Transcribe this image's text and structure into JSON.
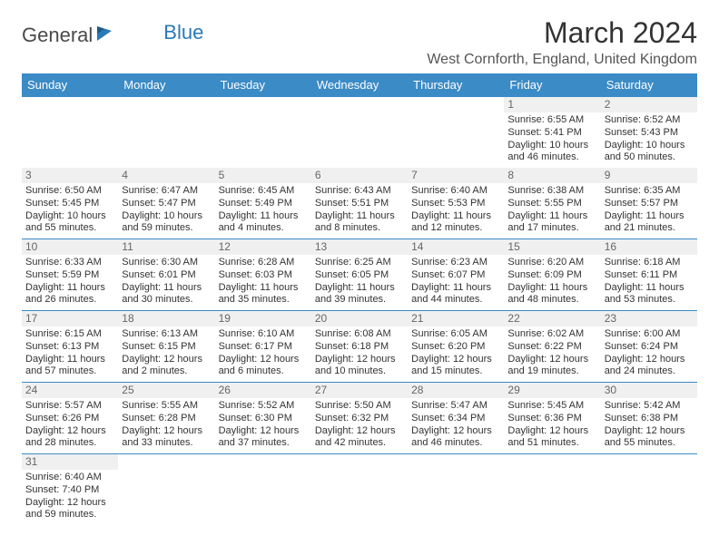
{
  "logo": {
    "part1": "General",
    "part2": "Blue"
  },
  "title": "March 2024",
  "location": "West Cornforth, England, United Kingdom",
  "colors": {
    "header_bg": "#3b8bc6",
    "header_text": "#ffffff",
    "border": "#3b8bc6",
    "daynum_bg": "#f0f0f0",
    "logo_blue": "#2a7ab8"
  },
  "day_headers": [
    "Sunday",
    "Monday",
    "Tuesday",
    "Wednesday",
    "Thursday",
    "Friday",
    "Saturday"
  ],
  "first_weekday_index": 5,
  "days": [
    {
      "n": 1,
      "sunrise": "6:55 AM",
      "sunset": "5:41 PM",
      "daylight": "10 hours and 46 minutes."
    },
    {
      "n": 2,
      "sunrise": "6:52 AM",
      "sunset": "5:43 PM",
      "daylight": "10 hours and 50 minutes."
    },
    {
      "n": 3,
      "sunrise": "6:50 AM",
      "sunset": "5:45 PM",
      "daylight": "10 hours and 55 minutes."
    },
    {
      "n": 4,
      "sunrise": "6:47 AM",
      "sunset": "5:47 PM",
      "daylight": "10 hours and 59 minutes."
    },
    {
      "n": 5,
      "sunrise": "6:45 AM",
      "sunset": "5:49 PM",
      "daylight": "11 hours and 4 minutes."
    },
    {
      "n": 6,
      "sunrise": "6:43 AM",
      "sunset": "5:51 PM",
      "daylight": "11 hours and 8 minutes."
    },
    {
      "n": 7,
      "sunrise": "6:40 AM",
      "sunset": "5:53 PM",
      "daylight": "11 hours and 12 minutes."
    },
    {
      "n": 8,
      "sunrise": "6:38 AM",
      "sunset": "5:55 PM",
      "daylight": "11 hours and 17 minutes."
    },
    {
      "n": 9,
      "sunrise": "6:35 AM",
      "sunset": "5:57 PM",
      "daylight": "11 hours and 21 minutes."
    },
    {
      "n": 10,
      "sunrise": "6:33 AM",
      "sunset": "5:59 PM",
      "daylight": "11 hours and 26 minutes."
    },
    {
      "n": 11,
      "sunrise": "6:30 AM",
      "sunset": "6:01 PM",
      "daylight": "11 hours and 30 minutes."
    },
    {
      "n": 12,
      "sunrise": "6:28 AM",
      "sunset": "6:03 PM",
      "daylight": "11 hours and 35 minutes."
    },
    {
      "n": 13,
      "sunrise": "6:25 AM",
      "sunset": "6:05 PM",
      "daylight": "11 hours and 39 minutes."
    },
    {
      "n": 14,
      "sunrise": "6:23 AM",
      "sunset": "6:07 PM",
      "daylight": "11 hours and 44 minutes."
    },
    {
      "n": 15,
      "sunrise": "6:20 AM",
      "sunset": "6:09 PM",
      "daylight": "11 hours and 48 minutes."
    },
    {
      "n": 16,
      "sunrise": "6:18 AM",
      "sunset": "6:11 PM",
      "daylight": "11 hours and 53 minutes."
    },
    {
      "n": 17,
      "sunrise": "6:15 AM",
      "sunset": "6:13 PM",
      "daylight": "11 hours and 57 minutes."
    },
    {
      "n": 18,
      "sunrise": "6:13 AM",
      "sunset": "6:15 PM",
      "daylight": "12 hours and 2 minutes."
    },
    {
      "n": 19,
      "sunrise": "6:10 AM",
      "sunset": "6:17 PM",
      "daylight": "12 hours and 6 minutes."
    },
    {
      "n": 20,
      "sunrise": "6:08 AM",
      "sunset": "6:18 PM",
      "daylight": "12 hours and 10 minutes."
    },
    {
      "n": 21,
      "sunrise": "6:05 AM",
      "sunset": "6:20 PM",
      "daylight": "12 hours and 15 minutes."
    },
    {
      "n": 22,
      "sunrise": "6:02 AM",
      "sunset": "6:22 PM",
      "daylight": "12 hours and 19 minutes."
    },
    {
      "n": 23,
      "sunrise": "6:00 AM",
      "sunset": "6:24 PM",
      "daylight": "12 hours and 24 minutes."
    },
    {
      "n": 24,
      "sunrise": "5:57 AM",
      "sunset": "6:26 PM",
      "daylight": "12 hours and 28 minutes."
    },
    {
      "n": 25,
      "sunrise": "5:55 AM",
      "sunset": "6:28 PM",
      "daylight": "12 hours and 33 minutes."
    },
    {
      "n": 26,
      "sunrise": "5:52 AM",
      "sunset": "6:30 PM",
      "daylight": "12 hours and 37 minutes."
    },
    {
      "n": 27,
      "sunrise": "5:50 AM",
      "sunset": "6:32 PM",
      "daylight": "12 hours and 42 minutes."
    },
    {
      "n": 28,
      "sunrise": "5:47 AM",
      "sunset": "6:34 PM",
      "daylight": "12 hours and 46 minutes."
    },
    {
      "n": 29,
      "sunrise": "5:45 AM",
      "sunset": "6:36 PM",
      "daylight": "12 hours and 51 minutes."
    },
    {
      "n": 30,
      "sunrise": "5:42 AM",
      "sunset": "6:38 PM",
      "daylight": "12 hours and 55 minutes."
    },
    {
      "n": 31,
      "sunrise": "6:40 AM",
      "sunset": "7:40 PM",
      "daylight": "12 hours and 59 minutes."
    }
  ],
  "labels": {
    "sunrise": "Sunrise:",
    "sunset": "Sunset:",
    "daylight": "Daylight:"
  }
}
